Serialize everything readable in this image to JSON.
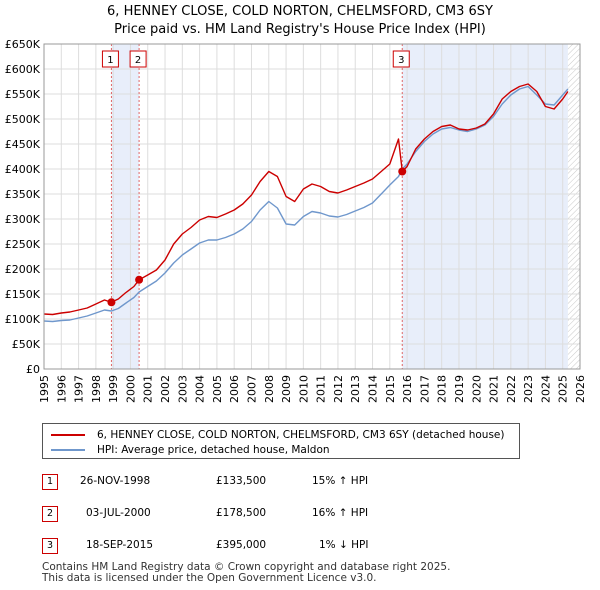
{
  "title_line1": "6, HENNEY CLOSE, COLD NORTON, CHELMSFORD, CM3 6SY",
  "title_line2": "Price paid vs. HM Land Registry's House Price Index (HPI)",
  "legend": {
    "property": "6, HENNEY CLOSE, COLD NORTON, CHELMSFORD, CM3 6SY (detached house)",
    "hpi": "HPI: Average price, detached house, Maldon"
  },
  "colors": {
    "property": "#cc0000",
    "hpi": "#6f97cc",
    "shade": "#e8eefa",
    "marker_line": "#e06666"
  },
  "sales": [
    {
      "num": "1",
      "date": "26-NOV-1998",
      "price": "£133,500",
      "hpi": "15% ↑ HPI"
    },
    {
      "num": "2",
      "date": "03-JUL-2000",
      "price": "£178,500",
      "hpi": "16% ↑ HPI"
    },
    {
      "num": "3",
      "date": "18-SEP-2015",
      "price": "£395,000",
      "hpi": "1% ↓ HPI"
    }
  ],
  "footer_line1": "Contains HM Land Registry data © Crown copyright and database right 2025.",
  "footer_line2": "This data is licensed under the Open Government Licence v3.0.",
  "chart_data": {
    "type": "line",
    "title": "Price paid vs. HM Land Registry's House Price Index (HPI)",
    "xlabel": "",
    "ylabel": "",
    "xlim": [
      1995,
      2026
    ],
    "ylim": [
      0,
      650000
    ],
    "y_ticks": [
      {
        "v": 0,
        "label": "£0"
      },
      {
        "v": 50000,
        "label": "£50K"
      },
      {
        "v": 100000,
        "label": "£100K"
      },
      {
        "v": 150000,
        "label": "£150K"
      },
      {
        "v": 200000,
        "label": "£200K"
      },
      {
        "v": 250000,
        "label": "£250K"
      },
      {
        "v": 300000,
        "label": "£300K"
      },
      {
        "v": 350000,
        "label": "£350K"
      },
      {
        "v": 400000,
        "label": "£400K"
      },
      {
        "v": 450000,
        "label": "£450K"
      },
      {
        "v": 500000,
        "label": "£500K"
      },
      {
        "v": 550000,
        "label": "£550K"
      },
      {
        "v": 600000,
        "label": "£600K"
      },
      {
        "v": 650000,
        "label": "£650K"
      }
    ],
    "x_ticks": [
      "1995",
      "1996",
      "1997",
      "1998",
      "1999",
      "2000",
      "2001",
      "2002",
      "2003",
      "2004",
      "2005",
      "2006",
      "2007",
      "2008",
      "2009",
      "2010",
      "2011",
      "2012",
      "2013",
      "2014",
      "2015",
      "2016",
      "2017",
      "2018",
      "2019",
      "2020",
      "2021",
      "2022",
      "2023",
      "2024",
      "2025",
      "2026"
    ],
    "sale_markers": [
      {
        "label": "1",
        "x": 1998.9,
        "y": 133500
      },
      {
        "label": "2",
        "x": 2000.5,
        "y": 178500
      },
      {
        "label": "3",
        "x": 2015.72,
        "y": 395000
      }
    ],
    "shaded_ranges": [
      [
        1998.9,
        2000.5
      ],
      [
        2015.72,
        2025.3
      ]
    ],
    "hatched_from": 2025.3,
    "series": [
      {
        "name": "6, HENNEY CLOSE, COLD NORTON, CHELMSFORD, CM3 6SY (detached house)",
        "x": [
          1995,
          1995.5,
          1996,
          1996.5,
          1997,
          1997.5,
          1998,
          1998.5,
          1998.9,
          1999.3,
          1999.7,
          2000.2,
          2000.5,
          2001,
          2001.5,
          2002,
          2002.5,
          2003,
          2003.5,
          2004,
          2004.5,
          2005,
          2005.5,
          2006,
          2006.5,
          2007,
          2007.5,
          2008,
          2008.5,
          2009,
          2009.5,
          2010,
          2010.5,
          2011,
          2011.5,
          2012,
          2012.5,
          2013,
          2013.5,
          2014,
          2014.5,
          2015,
          2015.5,
          2015.72,
          2016,
          2016.5,
          2017,
          2017.5,
          2018,
          2018.5,
          2019,
          2019.5,
          2020,
          2020.5,
          2021,
          2021.5,
          2022,
          2022.5,
          2023,
          2023.5,
          2024,
          2024.5,
          2025,
          2025.3
        ],
        "values": [
          110000,
          109000,
          112000,
          114000,
          118000,
          122000,
          130000,
          138000,
          133500,
          140000,
          152000,
          165000,
          178500,
          188000,
          198000,
          218000,
          250000,
          270000,
          283000,
          298000,
          305000,
          303000,
          310000,
          318000,
          330000,
          348000,
          375000,
          395000,
          385000,
          345000,
          335000,
          360000,
          370000,
          365000,
          355000,
          352000,
          358000,
          365000,
          372000,
          380000,
          395000,
          410000,
          460000,
          395000,
          405000,
          440000,
          460000,
          475000,
          485000,
          488000,
          480000,
          478000,
          482000,
          490000,
          510000,
          540000,
          555000,
          565000,
          570000,
          555000,
          525000,
          520000,
          540000,
          555000
        ]
      },
      {
        "name": "HPI: Average price, detached house, Maldon",
        "x": [
          1995,
          1995.5,
          1996,
          1996.5,
          1997,
          1997.5,
          1998,
          1998.5,
          1998.9,
          1999.3,
          1999.7,
          2000.2,
          2000.5,
          2001,
          2001.5,
          2002,
          2002.5,
          2003,
          2003.5,
          2004,
          2004.5,
          2005,
          2005.5,
          2006,
          2006.5,
          2007,
          2007.5,
          2008,
          2008.5,
          2009,
          2009.5,
          2010,
          2010.5,
          2011,
          2011.5,
          2012,
          2012.5,
          2013,
          2013.5,
          2014,
          2014.5,
          2015,
          2015.5,
          2015.72,
          2016,
          2016.5,
          2017,
          2017.5,
          2018,
          2018.5,
          2019,
          2019.5,
          2020,
          2020.5,
          2021,
          2021.5,
          2022,
          2022.5,
          2023,
          2023.5,
          2024,
          2024.5,
          2025,
          2025.3
        ],
        "values": [
          96000,
          95000,
          97000,
          98000,
          102000,
          106000,
          112000,
          118000,
          116000,
          121000,
          131000,
          143000,
          154000,
          165000,
          176000,
          192000,
          212000,
          228000,
          240000,
          252000,
          258000,
          258000,
          263000,
          270000,
          280000,
          295000,
          318000,
          335000,
          322000,
          290000,
          288000,
          305000,
          315000,
          312000,
          306000,
          304000,
          309000,
          316000,
          323000,
          332000,
          350000,
          368000,
          385000,
          400000,
          410000,
          435000,
          455000,
          470000,
          480000,
          483000,
          478000,
          475000,
          480000,
          488000,
          505000,
          530000,
          548000,
          560000,
          565000,
          548000,
          530000,
          528000,
          548000,
          560000
        ]
      }
    ]
  }
}
